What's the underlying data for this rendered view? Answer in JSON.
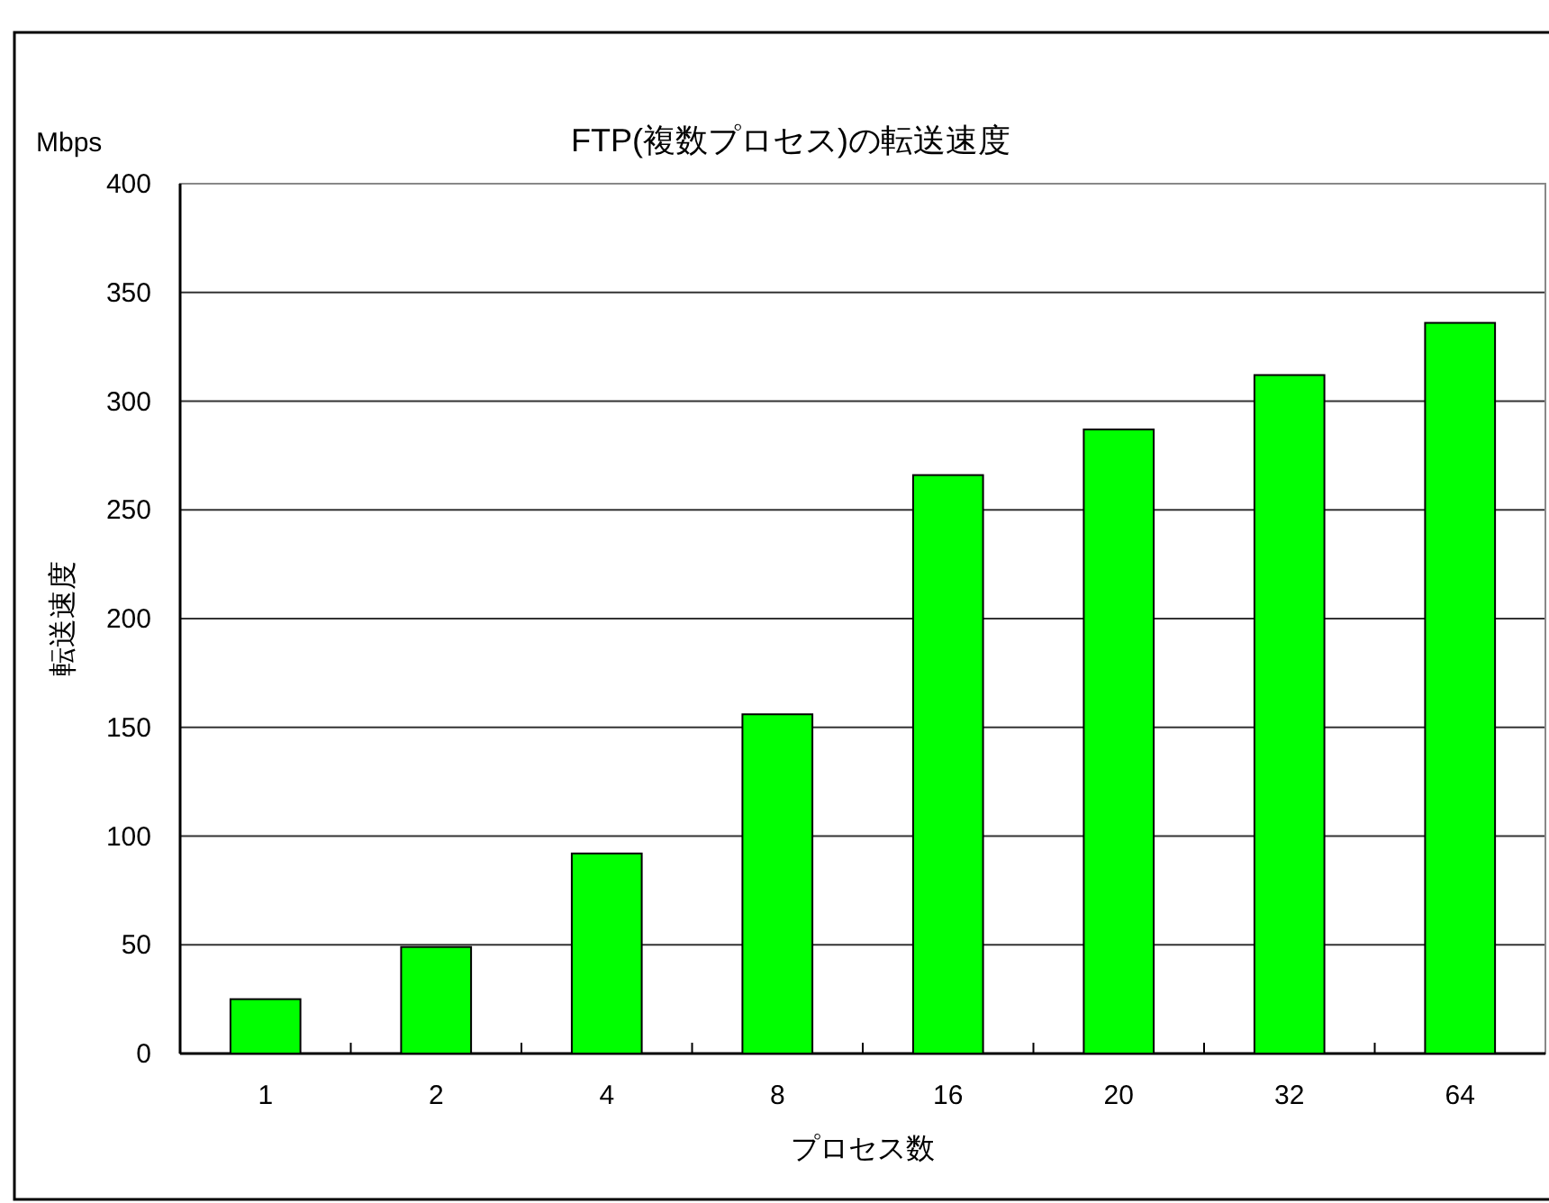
{
  "chart_data": {
    "type": "bar",
    "title": "FTP(複数プロセス)の転送速度",
    "xlabel": "プロセス数",
    "ylabel": "転送速度",
    "annotations": [
      "Mbps"
    ],
    "categories": [
      "1",
      "2",
      "4",
      "8",
      "16",
      "20",
      "32",
      "64"
    ],
    "values": [
      25,
      49,
      92,
      156,
      266,
      287,
      312,
      336
    ],
    "color": "#00ff00",
    "ylim": [
      0,
      400
    ],
    "yticks": [
      0,
      50,
      100,
      150,
      200,
      250,
      300,
      350,
      400
    ],
    "grid": "y"
  }
}
